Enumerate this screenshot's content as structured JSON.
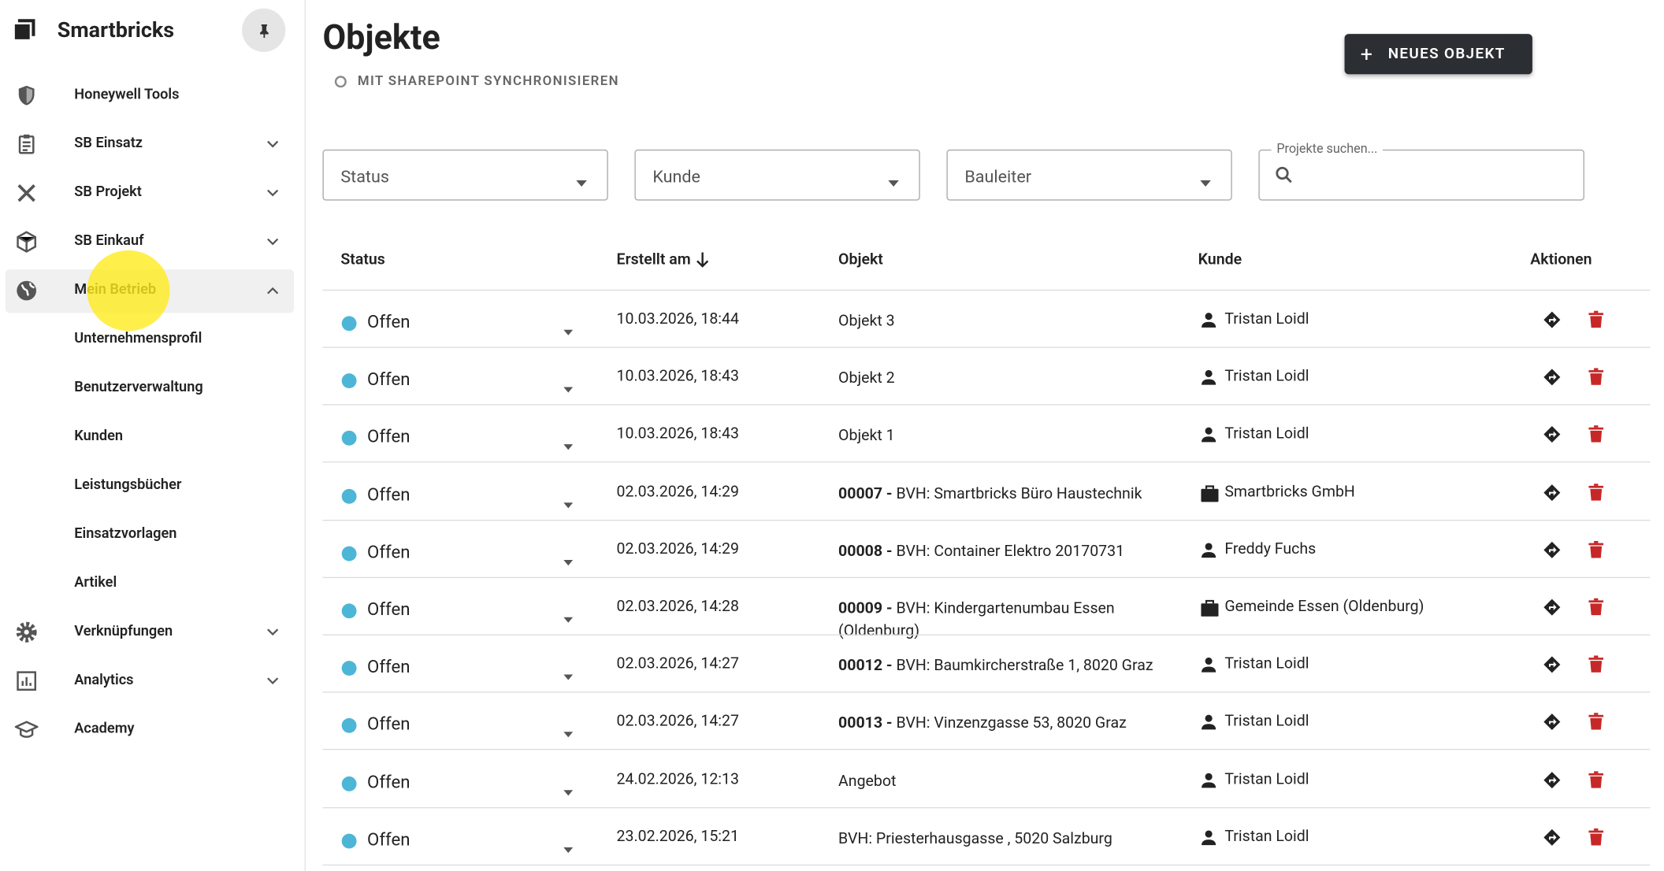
{
  "sidebar": {
    "brand": "Smartbricks",
    "items": [
      {
        "label": "Honeywell Tools",
        "icon": "shield",
        "expand": "none"
      },
      {
        "label": "SB Einsatz",
        "icon": "clipboard",
        "expand": "down"
      },
      {
        "label": "SB Projekt",
        "icon": "tools",
        "expand": "down"
      },
      {
        "label": "SB Einkauf",
        "icon": "box",
        "expand": "down"
      },
      {
        "label": "Mein Betrieb",
        "icon": "globe",
        "expand": "up",
        "children": [
          "Unternehmensprofil",
          "Benutzerverwaltung",
          "Kunden",
          "Leistungsbücher",
          "Einsatzvorlagen",
          "Artikel"
        ]
      },
      {
        "label": "Verknüpfungen",
        "icon": "gear",
        "expand": "down"
      },
      {
        "label": "Analytics",
        "icon": "chart",
        "expand": "down"
      },
      {
        "label": "Academy",
        "icon": "cap",
        "expand": "none"
      }
    ]
  },
  "header": {
    "title": "Objekte",
    "sync": "MIT SHAREPOINT SYNCHRONISIEREN",
    "new_button": "NEUES OBJEKT"
  },
  "filters": {
    "selects": [
      "Status",
      "Kunde",
      "Bauleiter"
    ],
    "search_label": "Projekte suchen..."
  },
  "table": {
    "columns": [
      "Status",
      "Erstellt am",
      "Objekt",
      "Kunde",
      "Aktionen"
    ],
    "rows": [
      {
        "status": "Offen",
        "date": "10.03.2026, 18:44",
        "code": null,
        "name": "Objekt 3",
        "customer": "Tristan Loidl",
        "customer_type": "person"
      },
      {
        "status": "Offen",
        "date": "10.03.2026, 18:43",
        "code": null,
        "name": "Objekt 2",
        "customer": "Tristan Loidl",
        "customer_type": "person"
      },
      {
        "status": "Offen",
        "date": "10.03.2026, 18:43",
        "code": null,
        "name": "Objekt 1",
        "customer": "Tristan Loidl",
        "customer_type": "person"
      },
      {
        "status": "Offen",
        "date": "02.03.2026, 14:29",
        "code": "00007 -",
        "name": "BVH: Smartbricks Büro Haustechnik",
        "customer": "Smartbricks GmbH",
        "customer_type": "company"
      },
      {
        "status": "Offen",
        "date": "02.03.2026, 14:29",
        "code": "00008 -",
        "name": "BVH: Container Elektro 20170731",
        "customer": "Freddy Fuchs",
        "customer_type": "person"
      },
      {
        "status": "Offen",
        "date": "02.03.2026, 14:28",
        "code": "00009 -",
        "name": "BVH: Kindergartenumbau Essen (Oldenburg)",
        "customer": "Gemeinde Essen (Oldenburg)",
        "customer_type": "company"
      },
      {
        "status": "Offen",
        "date": "02.03.2026, 14:27",
        "code": "00012 -",
        "name": "BVH: Baumkircherstraße 1, 8020 Graz",
        "customer": "Tristan Loidl",
        "customer_type": "person"
      },
      {
        "status": "Offen",
        "date": "02.03.2026, 14:27",
        "code": "00013 -",
        "name": "BVH: Vinzenzgasse 53, 8020 Graz",
        "customer": "Tristan Loidl",
        "customer_type": "person"
      },
      {
        "status": "Offen",
        "date": "24.02.2026, 12:13",
        "code": null,
        "name": "Angebot",
        "customer": "Tristan Loidl",
        "customer_type": "person"
      },
      {
        "status": "Offen",
        "date": "23.02.2026, 15:21",
        "code": null,
        "name": "BVH: Priesterhausgasse , 5020 Salzburg",
        "customer": "Tristan Loidl",
        "customer_type": "person"
      }
    ]
  }
}
